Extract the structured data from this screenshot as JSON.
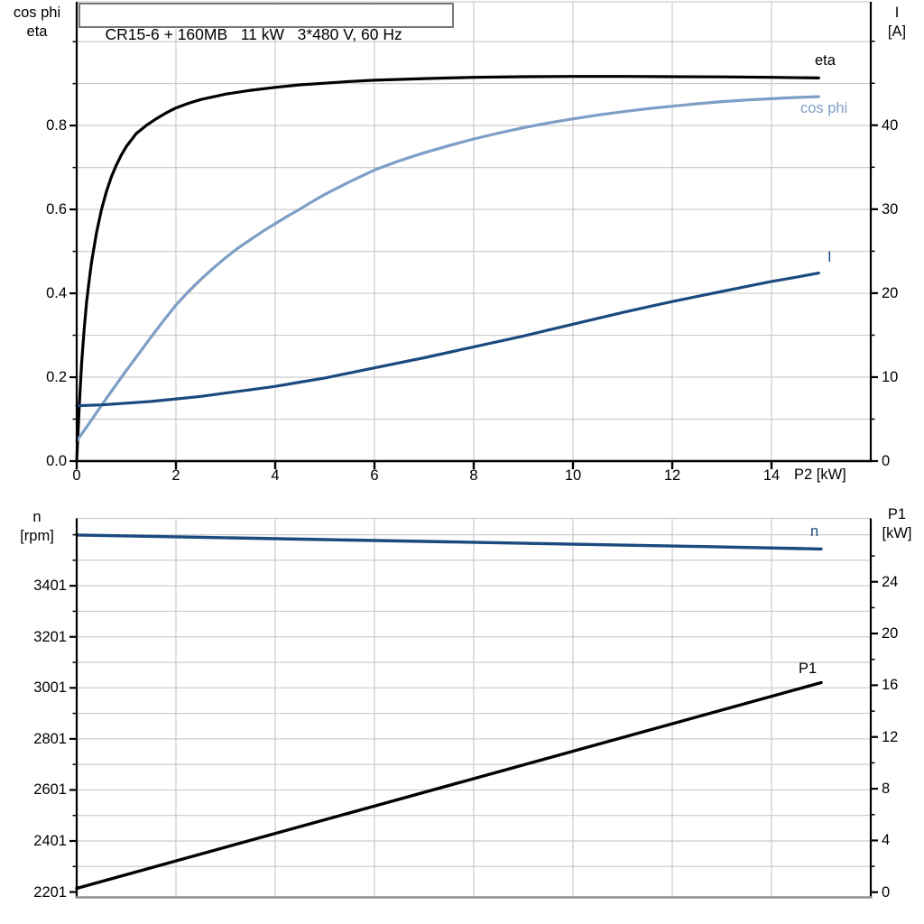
{
  "header": {
    "title": "CR15-6 + 160MB   11 kW   3*480 V, 60 Hz"
  },
  "colors": {
    "black_curve": "#000000",
    "light_blue": "#7d9ec6",
    "dark_blue": "#1a4a7e",
    "grid": "#cccccc",
    "axis": "#000000",
    "frame_top": "#cccccc",
    "bottom_border": "#8f8f8f",
    "text": "#000000"
  },
  "chart_data": [
    {
      "type": "line",
      "title": "CR15-6 + 160MB   11 kW   3*480 V, 60 Hz",
      "x_axis": {
        "label": "P2 [kW]",
        "min": 0,
        "max": 16,
        "tick_values": [
          0,
          2,
          4,
          6,
          8,
          10,
          12,
          14
        ],
        "tick_labels": [
          "0",
          "2",
          "4",
          "6",
          "8",
          "10",
          "12",
          "14"
        ],
        "grid_values": [
          2,
          4,
          6,
          8,
          10,
          12,
          14
        ],
        "grid": true
      },
      "y_left": {
        "label_lines": [
          "cos phi",
          "eta"
        ],
        "min": 0,
        "max": 1.095,
        "tick_values": [
          0,
          0.2,
          0.4,
          0.6,
          0.8
        ],
        "tick_labels": [
          "0.0",
          "0.2",
          "0.4",
          "0.6",
          "0.8"
        ],
        "minor_tick_values": [
          0.1,
          0.3,
          0.5,
          0.7,
          0.9,
          1.0
        ],
        "grid_values": [
          0.1,
          0.2,
          0.3,
          0.4,
          0.5,
          0.6,
          0.7,
          0.8,
          0.9,
          1.0
        ],
        "grid": true
      },
      "y_right": {
        "label_lines": [
          "I",
          "[A]"
        ],
        "min": 0,
        "max": 54.7,
        "tick_values": [
          0,
          10,
          20,
          30,
          40
        ],
        "tick_labels": [
          "0",
          "10",
          "20",
          "30",
          "40"
        ],
        "minor_tick_values": [
          5,
          15,
          25,
          35,
          45,
          50
        ],
        "grid_values": [],
        "grid": false
      },
      "series": [
        {
          "name": "eta",
          "label": "eta",
          "axis": "left",
          "color_key": "black_curve",
          "width": 3.2,
          "points": [
            [
              0,
              0
            ],
            [
              0.05,
              0.13
            ],
            [
              0.1,
              0.235
            ],
            [
              0.15,
              0.315
            ],
            [
              0.2,
              0.38
            ],
            [
              0.25,
              0.43
            ],
            [
              0.3,
              0.475
            ],
            [
              0.4,
              0.545
            ],
            [
              0.5,
              0.6
            ],
            [
              0.6,
              0.643
            ],
            [
              0.7,
              0.678
            ],
            [
              0.8,
              0.706
            ],
            [
              0.9,
              0.73
            ],
            [
              1.0,
              0.75
            ],
            [
              1.2,
              0.781
            ],
            [
              1.4,
              0.8
            ],
            [
              1.6,
              0.816
            ],
            [
              1.8,
              0.83
            ],
            [
              2.0,
              0.842
            ],
            [
              2.25,
              0.853
            ],
            [
              2.5,
              0.862
            ],
            [
              3.0,
              0.875
            ],
            [
              3.5,
              0.884
            ],
            [
              4.0,
              0.891
            ],
            [
              4.5,
              0.897
            ],
            [
              5.0,
              0.901
            ],
            [
              5.5,
              0.905
            ],
            [
              6.0,
              0.908
            ],
            [
              6.5,
              0.91
            ],
            [
              7.0,
              0.912
            ],
            [
              7.5,
              0.9135
            ],
            [
              8.0,
              0.915
            ],
            [
              9.0,
              0.9165
            ],
            [
              10,
              0.917
            ],
            [
              11,
              0.917
            ],
            [
              12,
              0.9165
            ],
            [
              13,
              0.916
            ],
            [
              14,
              0.915
            ],
            [
              14.95,
              0.9135
            ]
          ]
        },
        {
          "name": "cos_phi",
          "label": "cos phi",
          "axis": "left",
          "color_key": "light_blue",
          "width": 3.2,
          "points": [
            [
              0,
              0.048
            ],
            [
              0.25,
              0.09
            ],
            [
              0.5,
              0.133
            ],
            [
              0.75,
              0.175
            ],
            [
              1.0,
              0.216
            ],
            [
              1.25,
              0.256
            ],
            [
              1.5,
              0.296
            ],
            [
              1.75,
              0.335
            ],
            [
              2.0,
              0.372
            ],
            [
              2.25,
              0.404
            ],
            [
              2.5,
              0.433
            ],
            [
              2.75,
              0.46
            ],
            [
              3.0,
              0.485
            ],
            [
              3.25,
              0.508
            ],
            [
              3.5,
              0.528
            ],
            [
              3.75,
              0.548
            ],
            [
              4.0,
              0.566
            ],
            [
              4.25,
              0.584
            ],
            [
              4.5,
              0.601
            ],
            [
              4.75,
              0.619
            ],
            [
              5.0,
              0.636
            ],
            [
              5.5,
              0.666
            ],
            [
              6.0,
              0.694
            ],
            [
              6.5,
              0.716
            ],
            [
              7.0,
              0.735
            ],
            [
              7.5,
              0.752
            ],
            [
              8.0,
              0.768
            ],
            [
              8.5,
              0.782
            ],
            [
              9.0,
              0.795
            ],
            [
              9.5,
              0.806
            ],
            [
              10,
              0.816
            ],
            [
              10.5,
              0.825
            ],
            [
              11,
              0.833
            ],
            [
              11.5,
              0.84
            ],
            [
              12,
              0.846
            ],
            [
              12.5,
              0.852
            ],
            [
              13,
              0.857
            ],
            [
              13.5,
              0.861
            ],
            [
              14,
              0.864
            ],
            [
              14.5,
              0.867
            ],
            [
              14.95,
              0.869
            ]
          ]
        },
        {
          "name": "I",
          "label": "I",
          "axis": "right",
          "color_key": "dark_blue",
          "width": 3.2,
          "points": [
            [
              0,
              6.6
            ],
            [
              0.5,
              6.7
            ],
            [
              1,
              6.9
            ],
            [
              1.5,
              7.1
            ],
            [
              2,
              7.4
            ],
            [
              2.5,
              7.7
            ],
            [
              3,
              8.1
            ],
            [
              3.5,
              8.5
            ],
            [
              4,
              8.9
            ],
            [
              4.5,
              9.4
            ],
            [
              5,
              9.9
            ],
            [
              5.5,
              10.5
            ],
            [
              6,
              11.1
            ],
            [
              6.5,
              11.7
            ],
            [
              7,
              12.3
            ],
            [
              7.5,
              12.95
            ],
            [
              8,
              13.6
            ],
            [
              8.5,
              14.25
            ],
            [
              9,
              14.9
            ],
            [
              9.5,
              15.6
            ],
            [
              10,
              16.3
            ],
            [
              10.5,
              17.0
            ],
            [
              11,
              17.7
            ],
            [
              11.5,
              18.35
            ],
            [
              12,
              19.0
            ],
            [
              12.5,
              19.6
            ],
            [
              13,
              20.2
            ],
            [
              13.5,
              20.8
            ],
            [
              14,
              21.4
            ],
            [
              14.5,
              21.9
            ],
            [
              14.95,
              22.4
            ]
          ]
        }
      ]
    },
    {
      "type": "line",
      "title": "",
      "x_axis": {
        "label": "",
        "min": 0,
        "max": 16,
        "tick_values": [],
        "tick_labels": [],
        "grid_values": [
          2,
          4,
          6,
          8,
          10,
          12,
          14
        ],
        "grid": true
      },
      "y_left": {
        "label_lines": [
          "n",
          "[rpm]"
        ],
        "min": 2180,
        "max": 3665,
        "tick_values": [
          2201,
          2401,
          2601,
          2801,
          3001,
          3201,
          3401
        ],
        "tick_labels": [
          "2201",
          "2401",
          "2601",
          "2801",
          "3001",
          "3201",
          "3401"
        ],
        "minor_tick_values": [
          2301,
          2501,
          2701,
          2901,
          3101,
          3301,
          3501,
          3601
        ],
        "grid_values": [
          2301,
          2401,
          2501,
          2601,
          2701,
          2801,
          2901,
          3001,
          3101,
          3201,
          3301,
          3401,
          3501,
          3601
        ],
        "grid": true
      },
      "y_right": {
        "label_lines": [
          "P1",
          "[kW]"
        ],
        "min": -0.4,
        "max": 28.9,
        "tick_values": [
          0,
          4,
          8,
          12,
          16,
          20,
          24
        ],
        "tick_labels": [
          "0",
          "4",
          "8",
          "12",
          "16",
          "20",
          "24"
        ],
        "minor_tick_values": [
          2,
          6,
          10,
          14,
          18,
          22,
          26
        ],
        "grid_values": [],
        "grid": false
      },
      "series": [
        {
          "name": "n",
          "label": "n",
          "axis": "left",
          "color_key": "dark_blue",
          "width": 3.4,
          "points": [
            [
              0,
              3600
            ],
            [
              2.5,
              3591
            ],
            [
              5,
              3582
            ],
            [
              7.5,
              3573
            ],
            [
              10,
              3564
            ],
            [
              12.5,
              3555
            ],
            [
              15,
              3545
            ]
          ]
        },
        {
          "name": "P1",
          "label": "P1",
          "axis": "right",
          "color_key": "black_curve",
          "width": 3.4,
          "points": [
            [
              0,
              0.3
            ],
            [
              15,
              16.2
            ]
          ]
        }
      ]
    }
  ]
}
